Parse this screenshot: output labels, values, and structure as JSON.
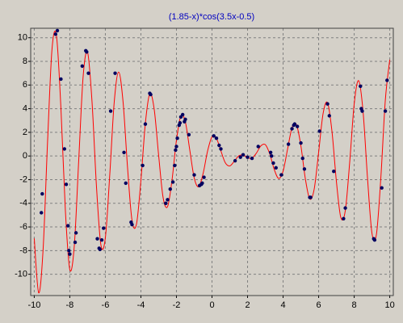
{
  "chart_data": {
    "type": "line",
    "title": "(1.85-x)*cos(3.5x-0.5)",
    "xlim": [
      -10.2,
      10.2
    ],
    "ylim": [
      -11.8,
      10.8
    ],
    "xticks": [
      -10,
      -8,
      -6,
      -4,
      -2,
      0,
      2,
      4,
      6,
      8,
      10
    ],
    "yticks": [
      -10,
      -8,
      -6,
      -4,
      -2,
      0,
      2,
      4,
      6,
      8,
      10
    ],
    "grid": true,
    "series": [
      {
        "style": "line",
        "color": "#ff0000",
        "x": [
          -10,
          -9.75,
          -9.5,
          -9.25,
          -9,
          -8.75,
          -8.5,
          -8.25,
          -8,
          -7.75,
          -7.5,
          -7.25,
          -7,
          -6.75,
          -6.5,
          -6.25,
          -6,
          -5.75,
          -5.5,
          -5.25,
          -5,
          -4.75,
          -4.5,
          -4.25,
          -4,
          -3.75,
          -3.5,
          -3.25,
          -3,
          -2.75,
          -2.5,
          -2.25,
          -2,
          -1.75,
          -1.5,
          -1.25,
          -1,
          -0.75,
          -0.5,
          -0.25,
          0,
          0.25,
          0.5,
          0.75,
          1,
          1.25,
          1.5,
          1.75,
          2,
          2.25,
          2.5,
          2.75,
          3,
          3.25,
          3.5,
          3.75,
          4,
          4.25,
          4.5,
          4.75,
          5,
          5.25,
          5.5,
          5.75,
          6,
          6.25,
          6.5,
          6.75,
          7,
          7.25,
          7.5,
          7.75,
          8,
          8.25,
          8.5,
          8.75,
          9,
          9.25,
          9.5,
          9.75,
          10
        ],
        "values": [
          -6.97,
          -11.57,
          -7.85,
          1.24,
          9.05,
          10.15,
          4.07,
          -4.58,
          -9.6,
          -7.65,
          -0.43,
          6.71,
          8.77,
          4.6,
          -2.56,
          -7.52,
          -6.92,
          -1.55,
          4.57,
          7.1,
          4.52,
          -1.01,
          -5.44,
          -5.77,
          -2.08,
          2.75,
          5.26,
          3.93,
          0.02,
          -3.52,
          -4.28,
          -2.04,
          1.33,
          3.39,
          2.88,
          0.5,
          -1.86,
          -2.6,
          -1.48,
          0.41,
          1.62,
          1.49,
          0.43,
          -0.58,
          -0.84,
          -0.45,
          0.01,
          0.08,
          -0.15,
          -0.18,
          0.25,
          0.86,
          0.96,
          0.17,
          -1.13,
          -1.9,
          -1.28,
          0.57,
          2.38,
          2.65,
          0.87,
          -1.91,
          -3.63,
          -2.79,
          0.33,
          3.59,
          4.5,
          2.07,
          -2.18,
          -5.22,
          -4.61,
          -0.46,
          4.4,
          6.37,
          3.73,
          -1.9,
          -6.54,
          -6.63,
          -1.8,
          4.71,
          8.14
        ]
      },
      {
        "style": "markers",
        "color": "#000060",
        "x": [
          -9.6,
          -9.55,
          -8.8,
          -8.7,
          -8.5,
          -8.3,
          -8.2,
          -8.1,
          -8.05,
          -8.0,
          -7.7,
          -7.65,
          -7.3,
          -7.1,
          -7.05,
          -6.95,
          -6.45,
          -6.35,
          -6.3,
          -6.2,
          -6.1,
          -5.7,
          -5.45,
          -4.95,
          -4.85,
          -4.55,
          -4.5,
          -3.9,
          -3.75,
          -3.5,
          -3.45,
          -2.6,
          -2.5,
          -2.35,
          -2.2,
          -2.1,
          -2.05,
          -2.0,
          -1.95,
          -1.85,
          -1.8,
          -1.75,
          -1.65,
          -1.55,
          -1.5,
          -1.3,
          -1.0,
          -0.7,
          -0.6,
          -0.55,
          -0.45,
          0.1,
          0.25,
          0.4,
          0.5,
          1.3,
          1.6,
          1.75,
          2.0,
          2.25,
          2.6,
          3.3,
          3.35,
          3.45,
          3.6,
          3.9,
          4.3,
          4.5,
          4.6,
          4.65,
          4.8,
          5.0,
          5.1,
          5.2,
          5.5,
          5.55,
          6.05,
          6.5,
          6.6,
          6.85,
          7.4,
          7.5,
          8.35,
          8.4,
          8.45,
          9.1,
          9.15,
          9.55,
          9.75,
          9.85
        ],
        "values": [
          -4.8,
          -3.2,
          10.3,
          10.6,
          6.5,
          0.6,
          -2.4,
          -5.9,
          -8.0,
          -8.3,
          -7.3,
          -6.5,
          7.6,
          8.9,
          8.8,
          7.0,
          -7.0,
          -7.8,
          -7.9,
          -7.1,
          -6.1,
          3.8,
          7.0,
          0.3,
          -2.3,
          -5.6,
          -5.8,
          -0.8,
          2.7,
          5.3,
          5.2,
          -4.0,
          -3.7,
          -2.8,
          -2.2,
          -0.8,
          0.5,
          0.8,
          1.5,
          2.6,
          2.8,
          3.3,
          3.5,
          2.9,
          3.1,
          1.8,
          -1.6,
          -2.5,
          -2.4,
          -2.3,
          -1.8,
          1.7,
          1.5,
          0.9,
          0.6,
          -0.4,
          -0.1,
          0.1,
          -0.1,
          -0.2,
          0.8,
          0.3,
          0.0,
          -0.6,
          -1.0,
          -1.6,
          1.0,
          2.3,
          2.6,
          2.7,
          2.5,
          1.1,
          -0.2,
          -1.1,
          -3.5,
          -3.5,
          2.1,
          4.4,
          3.4,
          -1.3,
          -5.3,
          -4.4,
          5.9,
          4.0,
          3.8,
          -7.0,
          -7.1,
          -2.7,
          3.8,
          6.4
        ]
      }
    ]
  }
}
